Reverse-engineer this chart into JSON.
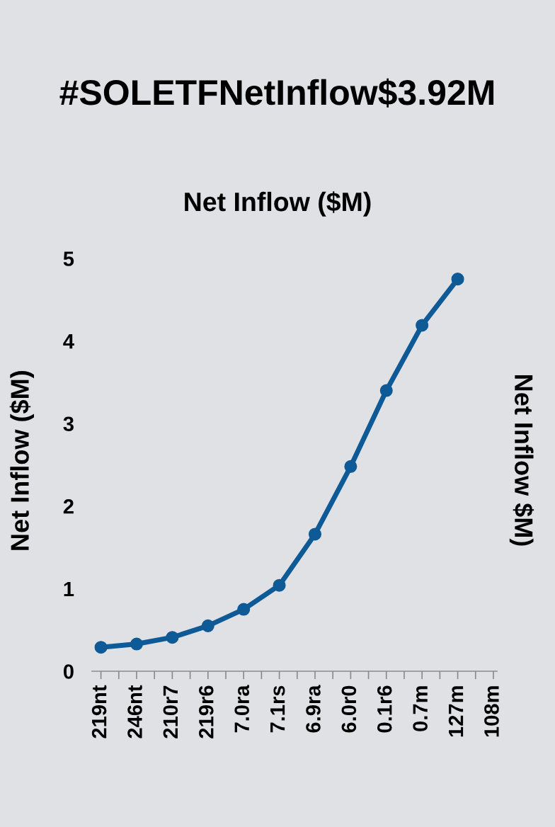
{
  "chart_data": {
    "type": "line",
    "title": "#SOLETFNetInflow$3.92M",
    "subtitle": "Net Inflow ($M)",
    "ylabel": "Net Inflow ($M)",
    "y2label": "Net Inflow $M)",
    "categories": [
      "219nt",
      "246nt",
      "210r7",
      "219r6",
      "7.0ra",
      "7.1rs",
      "6.9ra",
      "6.0r0",
      "0.1r6",
      "0.7m",
      "127m",
      "108m"
    ],
    "series": [
      {
        "color": "#0e5a96",
        "values": [
          0.29,
          0.33,
          0.41,
          0.55,
          0.75,
          1.04,
          1.66,
          2.48,
          3.4,
          4.19,
          4.75,
          null
        ]
      }
    ],
    "ylim": [
      0,
      5
    ],
    "yticks": [
      0,
      1,
      2,
      3,
      4,
      5
    ],
    "marker": "circle",
    "line_style": "solid",
    "grid": false
  }
}
